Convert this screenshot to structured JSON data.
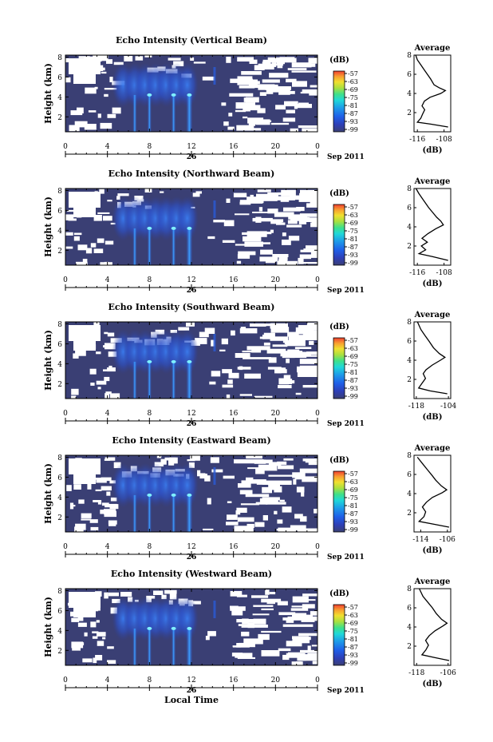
{
  "figure": {
    "xlabel": "Local Time",
    "date_label": "Sep 2011",
    "day_label": "26",
    "unit_label": "(dB)",
    "profile_title": "Average",
    "profile_xlabel": "(dB)",
    "ylabel": "Height (km)"
  },
  "chart_data": [
    {
      "type": "heatmap",
      "title": "Echo Intensity (Vertical Beam)",
      "xlabel": "",
      "ylabel": "Height (km)",
      "x_ticks": [
        "0",
        "4",
        "8",
        "12",
        "16",
        "20",
        "0"
      ],
      "xlim": [
        0,
        24
      ],
      "y_ticks": [
        "2",
        "4",
        "6",
        "8"
      ],
      "ylim": [
        0.5,
        8.2
      ],
      "colorbar": {
        "label": "(dB)",
        "ticks": [
          "-57",
          "-63",
          "-69",
          "-75",
          "-81",
          "-87",
          "-93",
          "-99"
        ]
      },
      "profile": {
        "title": "Average",
        "xlabel": "(dB)",
        "x_ticks": [
          "-116",
          "-108"
        ],
        "xlim": [
          -117,
          -106
        ],
        "ylim": [
          0,
          8
        ],
        "points": [
          [
            -106.8,
            0.5
          ],
          [
            -112,
            0.8
          ],
          [
            -116,
            1
          ],
          [
            -115,
            1.4
          ],
          [
            -114.5,
            1.8
          ],
          [
            -113.8,
            2.3
          ],
          [
            -114.6,
            2.7
          ],
          [
            -113.9,
            3.2
          ],
          [
            -112.2,
            3.6
          ],
          [
            -109,
            4
          ],
          [
            -107.6,
            4.3
          ],
          [
            -109.5,
            4.6
          ],
          [
            -111,
            4.9
          ],
          [
            -112,
            5.5
          ],
          [
            -113,
            6
          ],
          [
            -114,
            6.5
          ],
          [
            -115,
            7
          ],
          [
            -116,
            7.5
          ],
          [
            -116.5,
            8
          ]
        ]
      }
    },
    {
      "type": "heatmap",
      "title": "Echo Intensity (Northward Beam)",
      "xlabel": "",
      "ylabel": "Height (km)",
      "x_ticks": [
        "0",
        "4",
        "8",
        "12",
        "16",
        "20",
        "0"
      ],
      "xlim": [
        0,
        24
      ],
      "y_ticks": [
        "2",
        "4",
        "6",
        "8"
      ],
      "ylim": [
        0.5,
        8.2
      ],
      "colorbar": {
        "label": "(dB)",
        "ticks": [
          "-57",
          "-63",
          "-69",
          "-75",
          "-81",
          "-87",
          "-93",
          "-99"
        ]
      },
      "profile": {
        "title": "Average",
        "xlabel": "(dB)",
        "x_ticks": [
          "-116",
          "-108"
        ],
        "xlim": [
          -117,
          -106
        ],
        "ylim": [
          0,
          8
        ],
        "points": [
          [
            -106.8,
            0.5
          ],
          [
            -111.5,
            0.9
          ],
          [
            -115.5,
            1.2
          ],
          [
            -113.5,
            1.6
          ],
          [
            -114.8,
            2
          ],
          [
            -113,
            2.4
          ],
          [
            -114.6,
            2.8
          ],
          [
            -112.8,
            3.3
          ],
          [
            -110.5,
            3.8
          ],
          [
            -108.2,
            4.2
          ],
          [
            -109,
            4.6
          ],
          [
            -110.2,
            5
          ],
          [
            -111.4,
            5.5
          ],
          [
            -112.6,
            6
          ],
          [
            -113.6,
            6.5
          ],
          [
            -114.6,
            7
          ],
          [
            -115.6,
            7.5
          ],
          [
            -116.4,
            8
          ]
        ]
      }
    },
    {
      "type": "heatmap",
      "title": "Echo Intensity (Southward Beam)",
      "xlabel": "",
      "ylabel": "Height (km)",
      "x_ticks": [
        "0",
        "4",
        "8",
        "12",
        "16",
        "20",
        "0"
      ],
      "xlim": [
        0,
        24
      ],
      "y_ticks": [
        "2",
        "4",
        "6",
        "8"
      ],
      "ylim": [
        0.5,
        8.2
      ],
      "colorbar": {
        "label": "(dB)",
        "ticks": [
          "-57",
          "-63",
          "-69",
          "-75",
          "-81",
          "-87",
          "-93",
          "-99"
        ]
      },
      "profile": {
        "title": "Average",
        "xlabel": "(dB)",
        "x_ticks": [
          "-118",
          "-104"
        ],
        "xlim": [
          -119,
          -103
        ],
        "ylim": [
          0,
          8
        ],
        "points": [
          [
            -104.5,
            0.5
          ],
          [
            -112,
            0.8
          ],
          [
            -117,
            1.1
          ],
          [
            -115.5,
            1.6
          ],
          [
            -114,
            2.1
          ],
          [
            -115,
            2.6
          ],
          [
            -113.8,
            3
          ],
          [
            -111,
            3.5
          ],
          [
            -107.5,
            4
          ],
          [
            -105.5,
            4.3
          ],
          [
            -108,
            4.7
          ],
          [
            -110.5,
            5.3
          ],
          [
            -112.5,
            6
          ],
          [
            -114.3,
            6.6
          ],
          [
            -116,
            7.2
          ],
          [
            -117.5,
            8
          ]
        ]
      }
    },
    {
      "type": "heatmap",
      "title": "Echo Intensity (Eastward Beam)",
      "xlabel": "",
      "ylabel": "Height (km)",
      "x_ticks": [
        "0",
        "4",
        "8",
        "12",
        "16",
        "20",
        "0"
      ],
      "xlim": [
        0,
        24
      ],
      "y_ticks": [
        "2",
        "4",
        "6",
        "8"
      ],
      "ylim": [
        0.5,
        8.2
      ],
      "colorbar": {
        "label": "(dB)",
        "ticks": [
          "-57",
          "-63",
          "-69",
          "-75",
          "-81",
          "-87",
          "-93",
          "-99"
        ]
      },
      "profile": {
        "title": "Average",
        "xlabel": "(dB)",
        "x_ticks": [
          "-114",
          "-106"
        ],
        "xlim": [
          -116,
          -105
        ],
        "ylim": [
          0,
          8
        ],
        "points": [
          [
            -105.5,
            0.5
          ],
          [
            -110,
            0.8
          ],
          [
            -114.5,
            1.1
          ],
          [
            -113,
            1.6
          ],
          [
            -112.5,
            2.1
          ],
          [
            -113.5,
            2.6
          ],
          [
            -112.3,
            3.1
          ],
          [
            -110.5,
            3.6
          ],
          [
            -107.5,
            4.1
          ],
          [
            -106.2,
            4.4
          ],
          [
            -107.8,
            4.8
          ],
          [
            -109.5,
            5.4
          ],
          [
            -110.6,
            5.9
          ],
          [
            -112,
            6.5
          ],
          [
            -113.4,
            7.1
          ],
          [
            -115,
            7.8
          ]
        ]
      }
    },
    {
      "type": "heatmap",
      "title": "Echo Intensity (Westward Beam)",
      "xlabel": "Local Time",
      "ylabel": "Height (km)",
      "x_ticks": [
        "0",
        "4",
        "8",
        "12",
        "16",
        "20",
        "0"
      ],
      "xlim": [
        0,
        24
      ],
      "y_ticks": [
        "2",
        "4",
        "6",
        "8"
      ],
      "ylim": [
        0.5,
        8.2
      ],
      "colorbar": {
        "label": "(dB)",
        "ticks": [
          "-57",
          "-63",
          "-69",
          "-75",
          "-81",
          "-87",
          "-93",
          "-99"
        ]
      },
      "profile": {
        "title": "Average",
        "xlabel": "(dB)",
        "x_ticks": [
          "-118",
          "-106"
        ],
        "xlim": [
          -119,
          -105
        ],
        "ylim": [
          0,
          8
        ],
        "points": [
          [
            -105.6,
            0.5
          ],
          [
            -111,
            0.8
          ],
          [
            -116,
            1.1
          ],
          [
            -114.5,
            1.6
          ],
          [
            -113.5,
            2.1
          ],
          [
            -114.6,
            2.6
          ],
          [
            -113.2,
            3.1
          ],
          [
            -111,
            3.6
          ],
          [
            -108,
            4.1
          ],
          [
            -106.4,
            4.4
          ],
          [
            -108.5,
            4.8
          ],
          [
            -110.5,
            5.4
          ],
          [
            -112,
            6
          ],
          [
            -113.8,
            6.6
          ],
          [
            -115.6,
            7.2
          ],
          [
            -117,
            8
          ]
        ]
      }
    }
  ],
  "colors": {
    "background_field": "#3a3f74",
    "colorscale": [
      "#3a3f74",
      "#2e3fb6",
      "#1f5fe8",
      "#1e9ee8",
      "#20d8d8",
      "#3fe08a",
      "#a8e040",
      "#f0e030",
      "#f8a030",
      "#f04030"
    ]
  }
}
